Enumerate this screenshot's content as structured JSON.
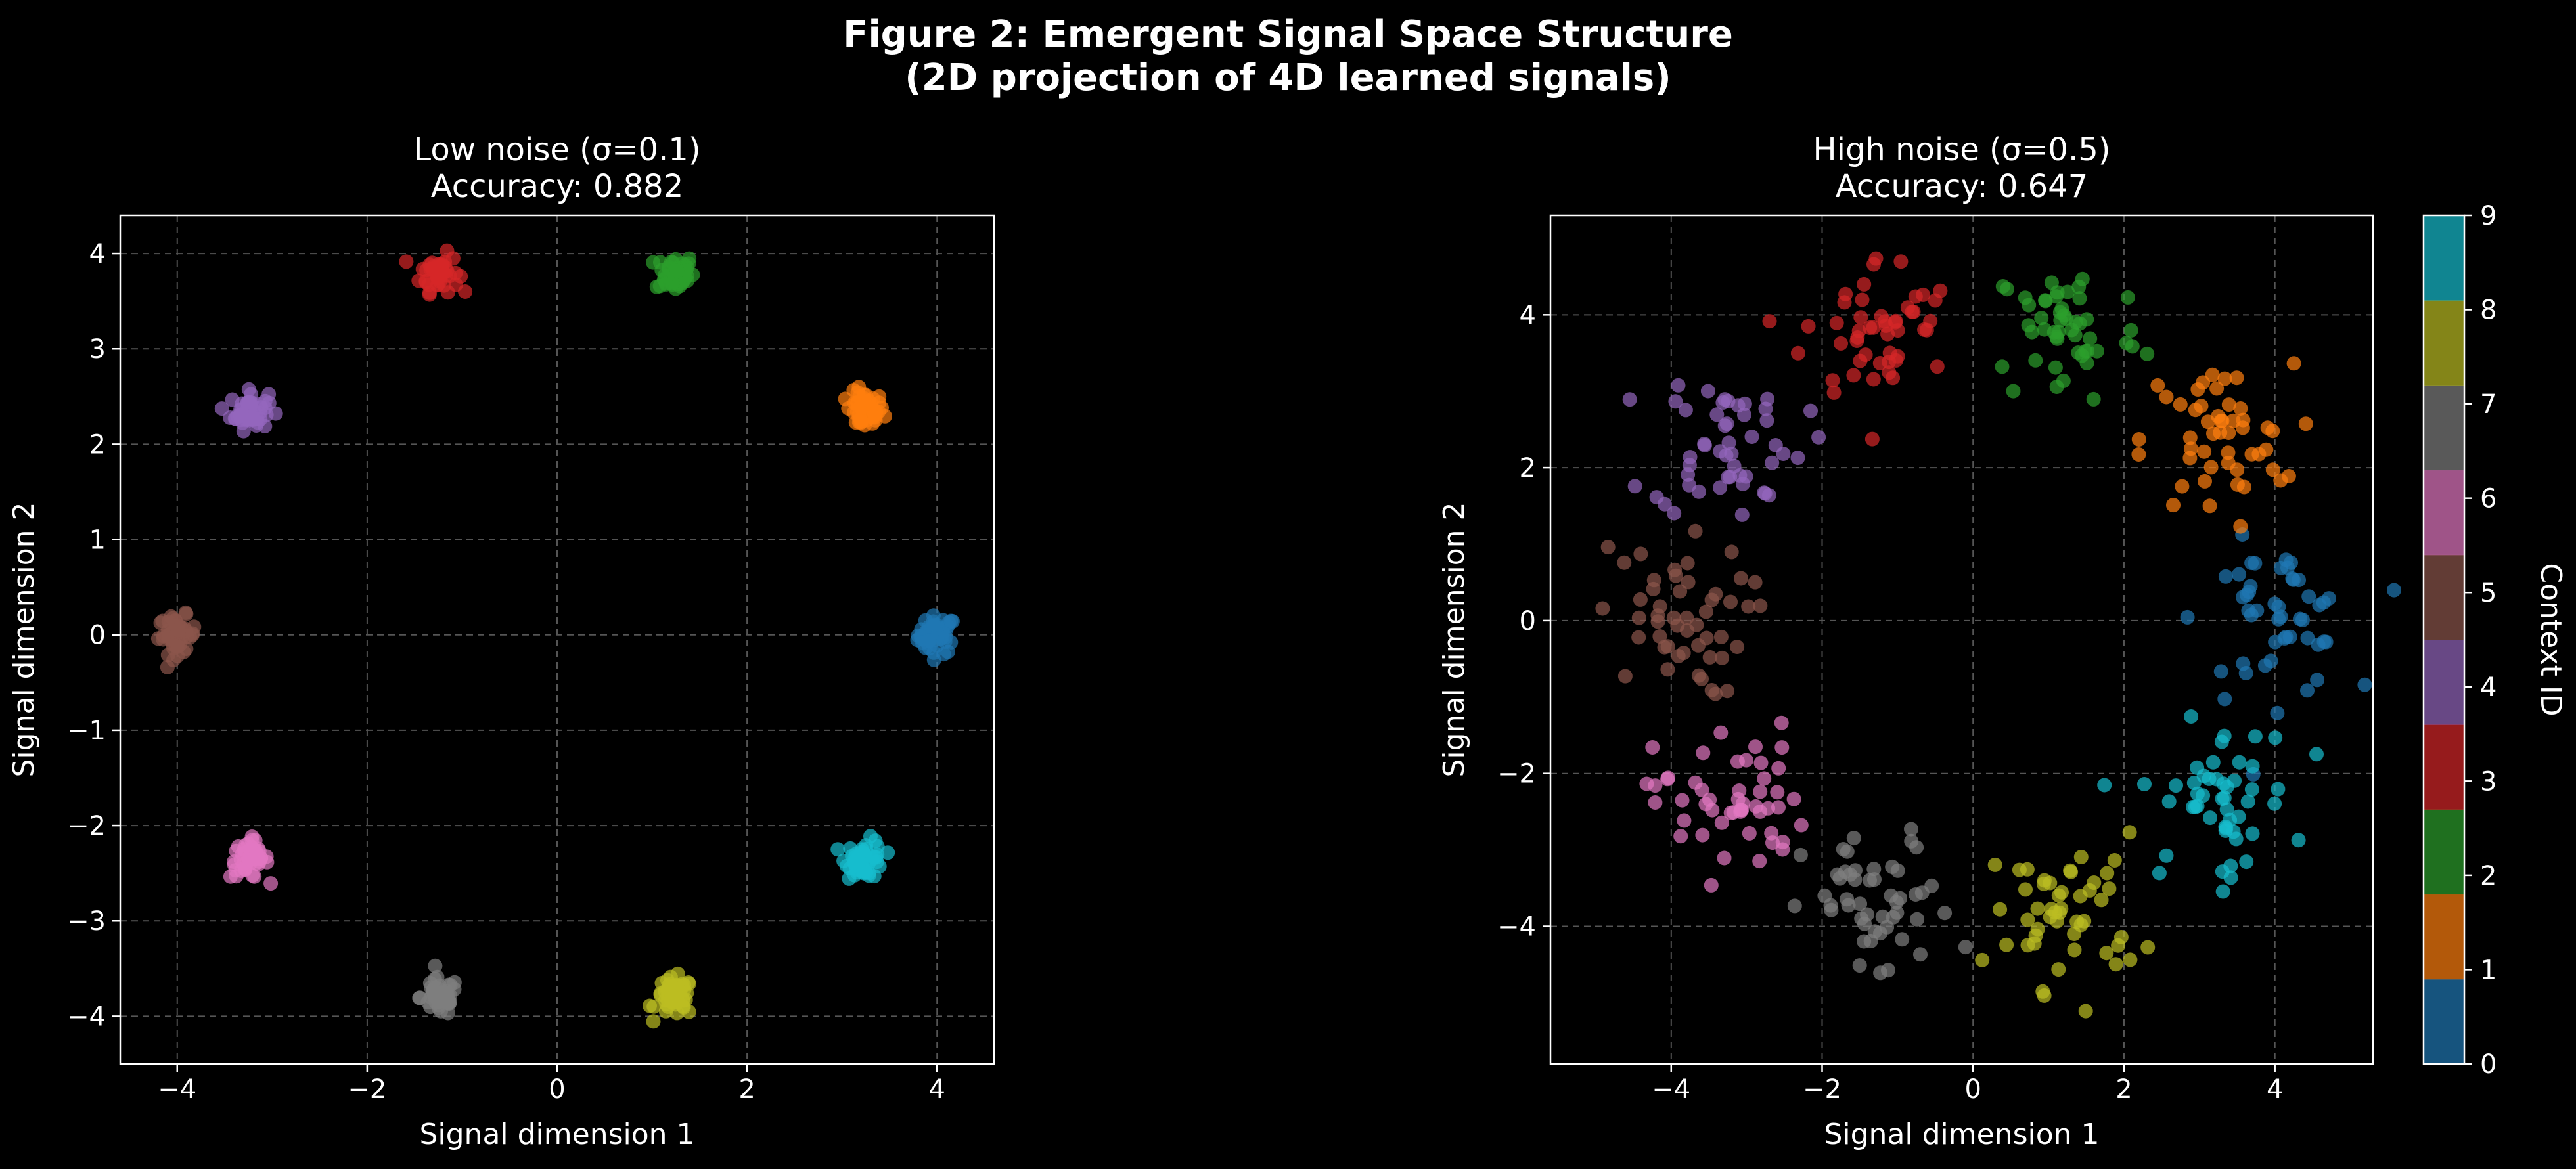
{
  "figure": {
    "title_line1": "Figure 2: Emergent Signal Space Structure",
    "title_line2": "(2D projection of 4D learned signals)"
  },
  "colorbar": {
    "label": "Context ID",
    "ticks": [
      "0",
      "1",
      "2",
      "3",
      "4",
      "5",
      "6",
      "7",
      "8",
      "9"
    ],
    "colors": [
      "#1f77b4",
      "#ff7f0e",
      "#2ca02c",
      "#d62728",
      "#9467bd",
      "#8c564b",
      "#e377c2",
      "#7f7f7f",
      "#bcbd22",
      "#17becf"
    ]
  },
  "chart_data": [
    {
      "type": "scatter",
      "title_line1": "Low noise (σ=0.1)",
      "title_line2": "Accuracy: 0.882",
      "xlabel": "Signal dimension 1",
      "ylabel": "Signal dimension 2",
      "xlim": [
        -4.6,
        4.6
      ],
      "ylim": [
        -4.5,
        4.4
      ],
      "xticks": [
        -4,
        -2,
        0,
        2,
        4
      ],
      "yticks": [
        -4,
        -3,
        -2,
        -1,
        0,
        1,
        2,
        3,
        4
      ],
      "grid": true,
      "points_per_context": 50,
      "cluster_spread": 0.1,
      "clusters": [
        {
          "context": 0,
          "center": [
            4.0,
            0.0
          ]
        },
        {
          "context": 1,
          "center": [
            3.24,
            2.35
          ]
        },
        {
          "context": 2,
          "center": [
            1.24,
            3.8
          ]
        },
        {
          "context": 3,
          "center": [
            -1.24,
            3.8
          ]
        },
        {
          "context": 4,
          "center": [
            -3.24,
            2.35
          ]
        },
        {
          "context": 5,
          "center": [
            -4.0,
            0.0
          ]
        },
        {
          "context": 6,
          "center": [
            -3.24,
            -2.35
          ]
        },
        {
          "context": 7,
          "center": [
            -1.24,
            -3.8
          ]
        },
        {
          "context": 8,
          "center": [
            1.24,
            -3.8
          ]
        },
        {
          "context": 9,
          "center": [
            3.24,
            -2.35
          ]
        }
      ]
    },
    {
      "type": "scatter",
      "title_line1": "High noise (σ=0.5)",
      "title_line2": "Accuracy: 0.647",
      "xlabel": "Signal dimension 1",
      "ylabel": "Signal dimension 2",
      "xlim": [
        -5.6,
        5.3
      ],
      "ylim": [
        -5.8,
        5.3
      ],
      "xticks": [
        -4,
        -2,
        0,
        2,
        4
      ],
      "yticks": [
        -4,
        -2,
        0,
        2,
        4
      ],
      "grid": true,
      "points_per_context": 50,
      "cluster_spread": 0.5,
      "clusters": [
        {
          "context": 0,
          "center": [
            4.0,
            0.0
          ]
        },
        {
          "context": 1,
          "center": [
            3.24,
            2.35
          ]
        },
        {
          "context": 2,
          "center": [
            1.24,
            3.8
          ]
        },
        {
          "context": 3,
          "center": [
            -1.24,
            3.8
          ]
        },
        {
          "context": 4,
          "center": [
            -3.24,
            2.35
          ]
        },
        {
          "context": 5,
          "center": [
            -4.0,
            0.0
          ]
        },
        {
          "context": 6,
          "center": [
            -3.24,
            -2.35
          ]
        },
        {
          "context": 7,
          "center": [
            -1.24,
            -3.8
          ]
        },
        {
          "context": 8,
          "center": [
            1.24,
            -3.8
          ]
        },
        {
          "context": 9,
          "center": [
            3.24,
            -2.35
          ]
        }
      ]
    }
  ]
}
